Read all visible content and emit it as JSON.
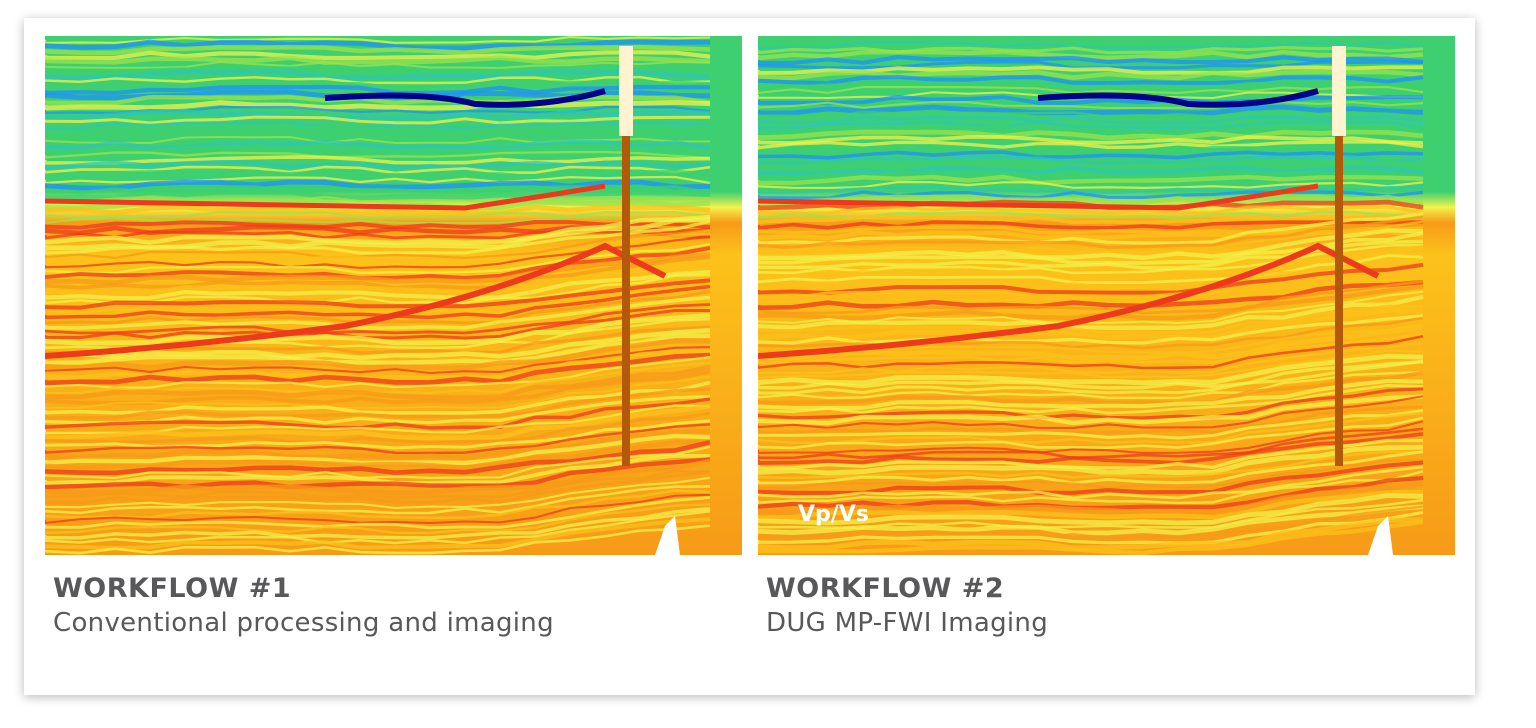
{
  "panels": [
    {
      "title": "WORKFLOW #1",
      "subtitle": "Conventional processing and imaging",
      "overlay_label": ""
    },
    {
      "title": "WORKFLOW #2",
      "subtitle": "DUG MP-FWI Imaging",
      "overlay_label": "Vp/Vs"
    }
  ],
  "colormap": [
    "#00008b",
    "#1e90ff",
    "#2fc6b5",
    "#3ed070",
    "#9be34a",
    "#f3f24a",
    "#fcc21a",
    "#f79a18",
    "#ee3a1c",
    "#b0144a"
  ]
}
